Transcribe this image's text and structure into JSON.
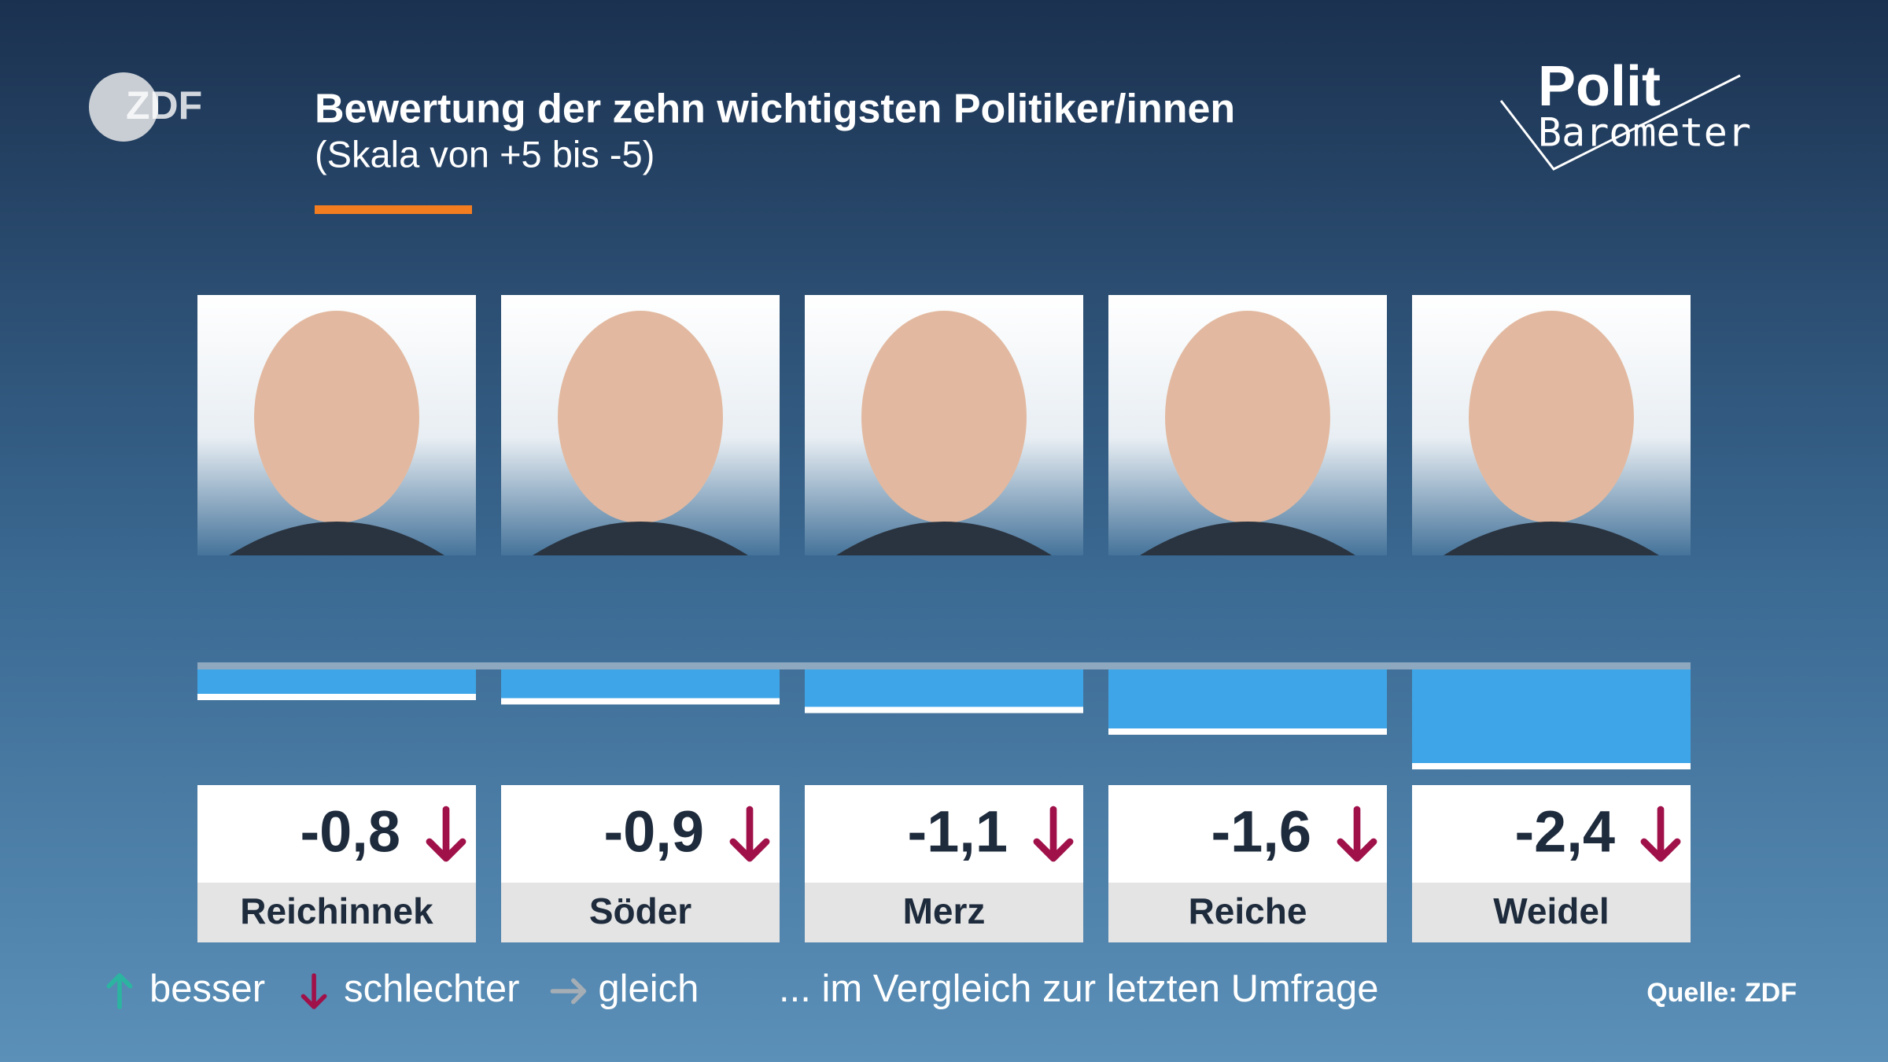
{
  "logo": "ZDF",
  "brand": {
    "line1": "Polit",
    "line2": "Barometer"
  },
  "chart_data": {
    "type": "bar",
    "title": "Bewertung der zehn wichtigsten Politiker/innen",
    "subtitle": "(Skala von +5 bis -5)",
    "categories": [
      "Reichinnek",
      "Söder",
      "Merz",
      "Reiche",
      "Weidel"
    ],
    "values": [
      -0.8,
      -0.9,
      -1.1,
      -1.6,
      -2.4
    ],
    "value_labels": [
      "-0,8",
      "-0,9",
      "-1,1",
      "-1,6",
      "-2,4"
    ],
    "trends": [
      "down",
      "down",
      "down",
      "down",
      "down"
    ],
    "color": "#3ea6e8",
    "ylim": [
      -5,
      0
    ],
    "legend": [
      {
        "trend": "up",
        "label": "besser"
      },
      {
        "trend": "down",
        "label": "schlechter"
      },
      {
        "trend": "right",
        "label": "gleich"
      }
    ],
    "legend_note": "... im Vergleich zur letzten Umfrage",
    "source": "Quelle: ZDF"
  }
}
